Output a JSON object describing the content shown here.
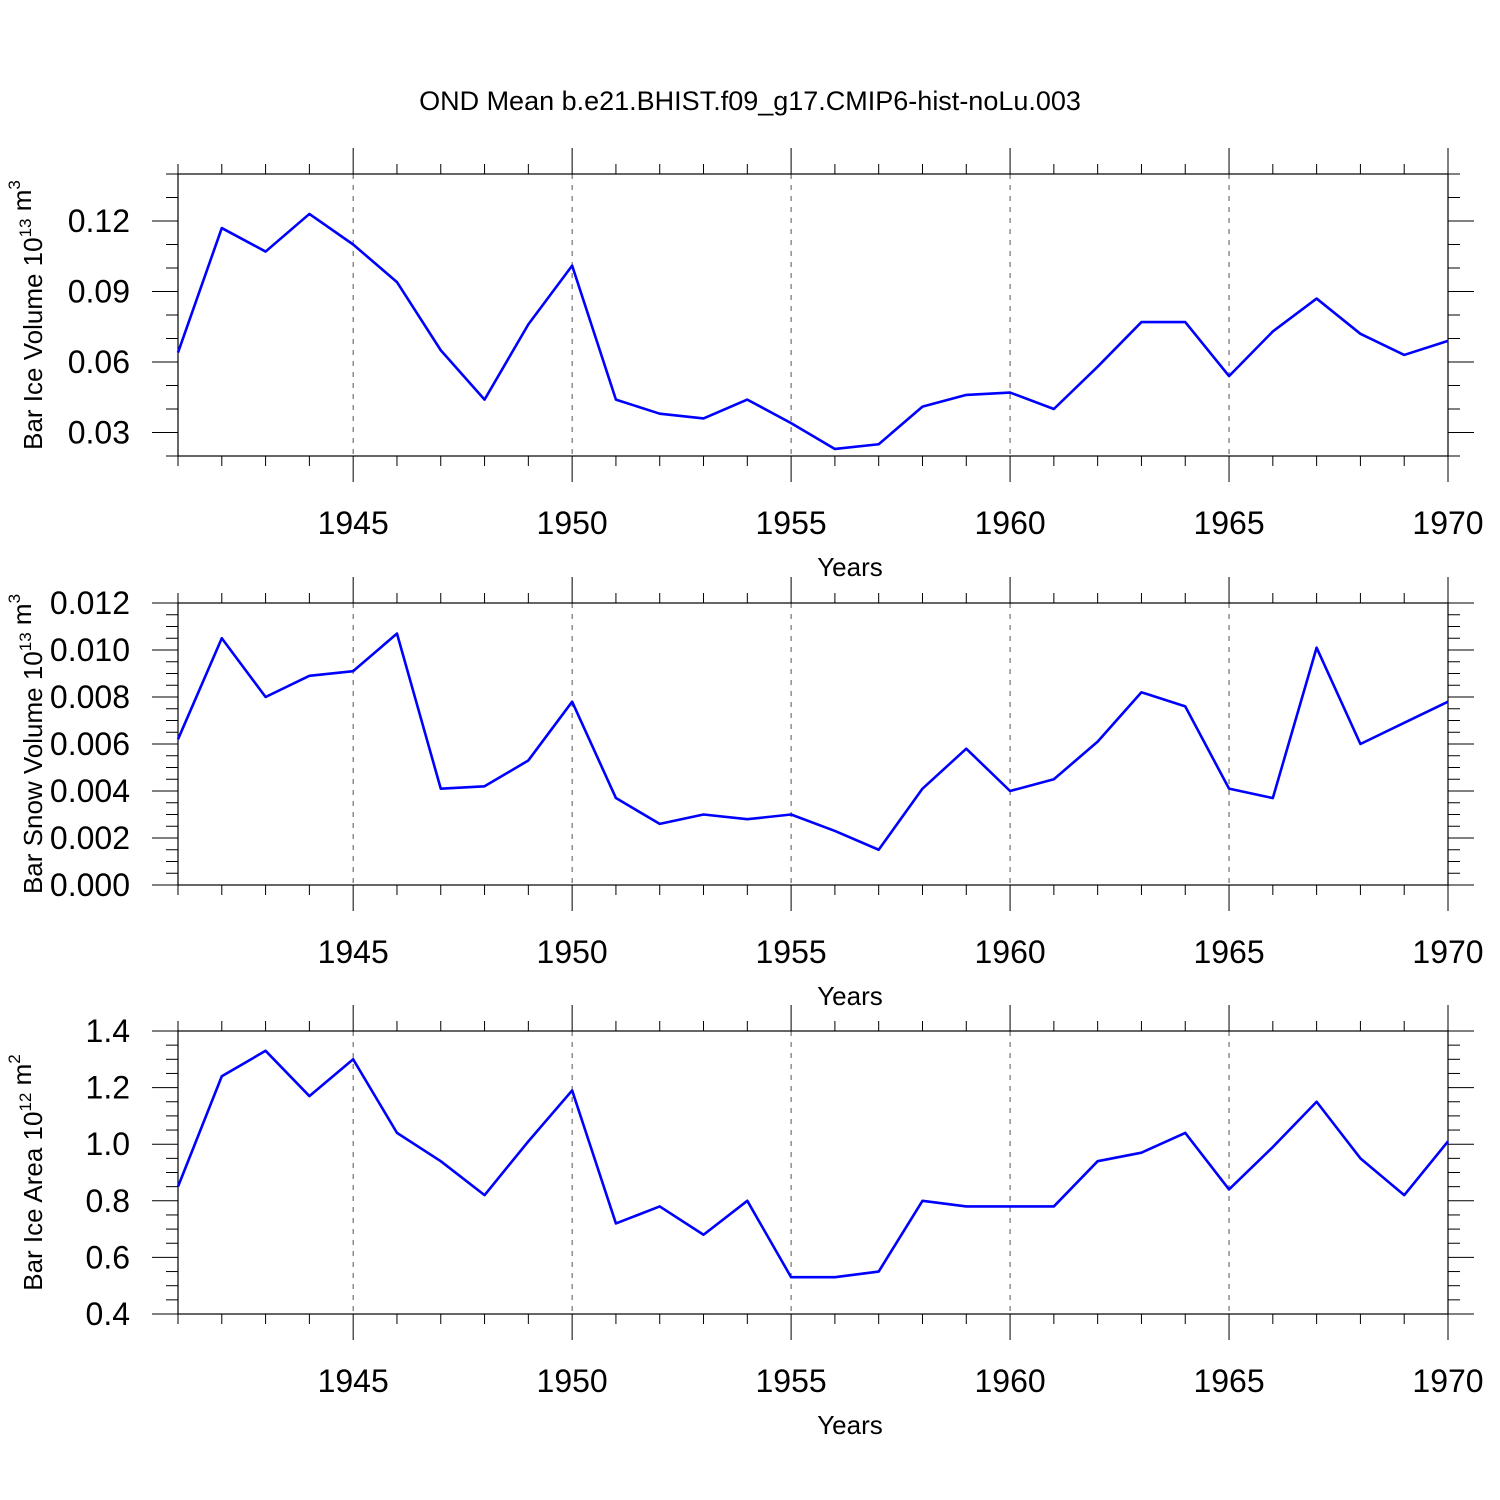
{
  "title": "OND Mean b.e21.BHIST.f09_g17.CMIP6-hist-noLu.003",
  "colors": {
    "line": "#0000ff",
    "grid": "#555555"
  },
  "chart_data": [
    {
      "type": "line",
      "ylabel": "Bar Ice Volume 10",
      "ylabel_exp": "13",
      "ylabel_unit": " m",
      "ylabel_unit_exp": "3",
      "xlabel": "Years",
      "xlim": [
        1941,
        1970
      ],
      "ylim": [
        0.02,
        0.14
      ],
      "yticks": [
        0.03,
        0.06,
        0.09,
        0.12
      ],
      "ytick_labels": [
        "0.03",
        "0.06",
        "0.09",
        "0.12"
      ],
      "yminor_step": 0.01,
      "xticks": [
        1945,
        1950,
        1955,
        1960,
        1965,
        1970
      ],
      "xtick_labels": [
        "1945",
        "1950",
        "1955",
        "1960",
        "1965",
        "1970"
      ],
      "grid_x": true,
      "x": [
        1941,
        1942,
        1943,
        1944,
        1945,
        1946,
        1947,
        1948,
        1949,
        1950,
        1951,
        1952,
        1953,
        1954,
        1955,
        1956,
        1957,
        1958,
        1959,
        1960,
        1961,
        1962,
        1963,
        1964,
        1965,
        1966,
        1967,
        1968,
        1969,
        1970
      ],
      "y": [
        0.064,
        0.117,
        0.107,
        0.123,
        0.11,
        0.094,
        0.065,
        0.044,
        0.076,
        0.101,
        0.044,
        0.038,
        0.036,
        0.044,
        0.034,
        0.023,
        0.025,
        0.041,
        0.046,
        0.047,
        0.04,
        0.058,
        0.077,
        0.077,
        0.054,
        0.073,
        0.087,
        0.072,
        0.063,
        0.069
      ]
    },
    {
      "type": "line",
      "ylabel": "Bar Snow Volume 10",
      "ylabel_exp": "13",
      "ylabel_unit": " m",
      "ylabel_unit_exp": "3",
      "xlabel": "Years",
      "xlim": [
        1941,
        1970
      ],
      "ylim": [
        0.0,
        0.012
      ],
      "yticks": [
        0.0,
        0.002,
        0.004,
        0.006,
        0.008,
        0.01,
        0.012
      ],
      "ytick_labels": [
        "0.000",
        "0.002",
        "0.004",
        "0.006",
        "0.008",
        "0.010",
        "0.012"
      ],
      "yminor_step": 0.0005,
      "xticks": [
        1945,
        1950,
        1955,
        1960,
        1965,
        1970
      ],
      "xtick_labels": [
        "1945",
        "1950",
        "1955",
        "1960",
        "1965",
        "1970"
      ],
      "grid_x": true,
      "x": [
        1941,
        1942,
        1943,
        1944,
        1945,
        1946,
        1947,
        1948,
        1949,
        1950,
        1951,
        1952,
        1953,
        1954,
        1955,
        1956,
        1957,
        1958,
        1959,
        1960,
        1961,
        1962,
        1963,
        1964,
        1965,
        1966,
        1967,
        1968,
        1969,
        1970
      ],
      "y": [
        0.0062,
        0.0105,
        0.008,
        0.0089,
        0.0091,
        0.0107,
        0.0041,
        0.0042,
        0.0053,
        0.0078,
        0.0037,
        0.0026,
        0.003,
        0.0028,
        0.003,
        0.0023,
        0.0015,
        0.0041,
        0.0058,
        0.004,
        0.0045,
        0.0061,
        0.0082,
        0.0076,
        0.0041,
        0.0037,
        0.0101,
        0.006,
        0.0069,
        0.0078
      ]
    },
    {
      "type": "line",
      "ylabel": "Bar Ice Area 10",
      "ylabel_exp": "12",
      "ylabel_unit": " m",
      "ylabel_unit_exp": "2",
      "xlabel": "Years",
      "xlim": [
        1941,
        1970
      ],
      "ylim": [
        0.4,
        1.4
      ],
      "yticks": [
        0.4,
        0.6,
        0.8,
        1.0,
        1.2,
        1.4
      ],
      "ytick_labels": [
        "0.4",
        "0.6",
        "0.8",
        "1.0",
        "1.2",
        "1.4"
      ],
      "yminor_step": 0.05,
      "xticks": [
        1945,
        1950,
        1955,
        1960,
        1965,
        1970
      ],
      "xtick_labels": [
        "1945",
        "1950",
        "1955",
        "1960",
        "1965",
        "1970"
      ],
      "grid_x": true,
      "x": [
        1941,
        1942,
        1943,
        1944,
        1945,
        1946,
        1947,
        1948,
        1949,
        1950,
        1951,
        1952,
        1953,
        1954,
        1955,
        1956,
        1957,
        1958,
        1959,
        1960,
        1961,
        1962,
        1963,
        1964,
        1965,
        1966,
        1967,
        1968,
        1969,
        1970
      ],
      "y": [
        0.85,
        1.24,
        1.33,
        1.17,
        1.3,
        1.04,
        0.94,
        0.82,
        1.01,
        1.19,
        0.72,
        0.78,
        0.68,
        0.8,
        0.53,
        0.53,
        0.55,
        0.8,
        0.78,
        0.78,
        0.78,
        0.94,
        0.97,
        1.04,
        0.84,
        0.99,
        1.15,
        0.95,
        0.82,
        1.01
      ]
    }
  ]
}
